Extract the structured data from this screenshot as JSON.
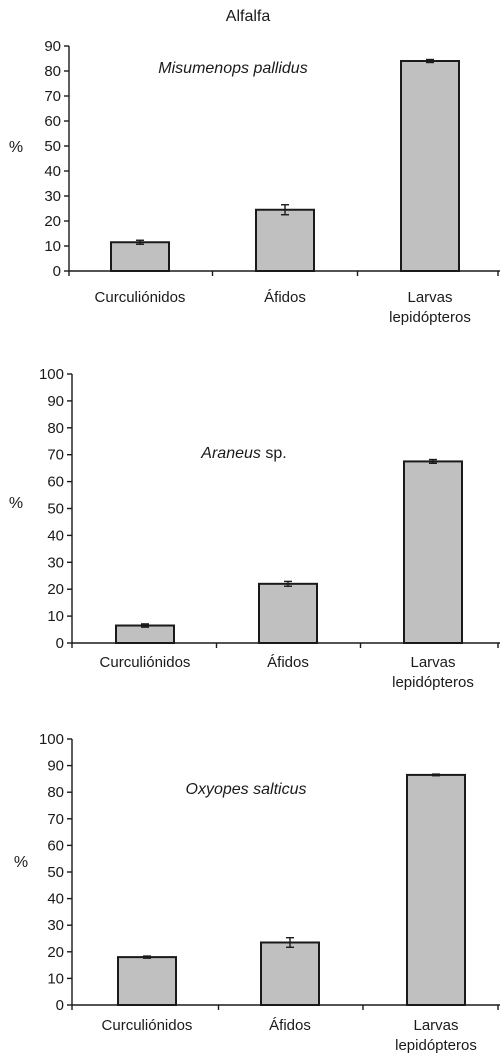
{
  "figure_title": "Alfalfa",
  "colors": {
    "bar_fill": "#c0c0c0",
    "stroke": "#1a1a1a"
  },
  "chart_data": [
    {
      "type": "bar",
      "title": "",
      "annotation": {
        "italic": "Misumenops pallidus",
        "plain": ""
      },
      "categories": [
        "Curculiónidos",
        "Áfidos",
        [
          "Larvas",
          "lepidópteros"
        ]
      ],
      "values": [
        11.5,
        24.5,
        84
      ],
      "errors": [
        0.8,
        2.0,
        0.6
      ],
      "ylabel": "%",
      "xlabel": "",
      "ylim": [
        0,
        90
      ],
      "yticks": [
        0,
        10,
        20,
        30,
        40,
        50,
        60,
        70,
        80,
        90
      ],
      "grid": false
    },
    {
      "type": "bar",
      "title": "",
      "annotation": {
        "italic": "Araneus",
        "plain": " sp."
      },
      "categories": [
        "Curculiónidos",
        "Áfidos",
        [
          "Larvas",
          "lepidópteros"
        ]
      ],
      "values": [
        6.5,
        22,
        67.5
      ],
      "errors": [
        0.6,
        0.9,
        0.7
      ],
      "ylabel": "%",
      "xlabel": "",
      "ylim": [
        0,
        100
      ],
      "yticks": [
        0,
        10,
        20,
        30,
        40,
        50,
        60,
        70,
        80,
        90,
        100
      ],
      "grid": false
    },
    {
      "type": "bar",
      "title": "",
      "annotation": {
        "italic": "Oxyopes salticus",
        "plain": ""
      },
      "categories": [
        "Curculiónidos",
        "Áfidos",
        [
          "Larvas",
          "lepidópteros"
        ]
      ],
      "values": [
        18,
        23.5,
        86.5
      ],
      "errors": [
        0.4,
        1.8,
        0.3
      ],
      "ylabel": "%",
      "xlabel": "",
      "ylim": [
        0,
        100
      ],
      "yticks": [
        0,
        10,
        20,
        30,
        40,
        50,
        60,
        70,
        80,
        90,
        100
      ],
      "grid": false
    }
  ]
}
